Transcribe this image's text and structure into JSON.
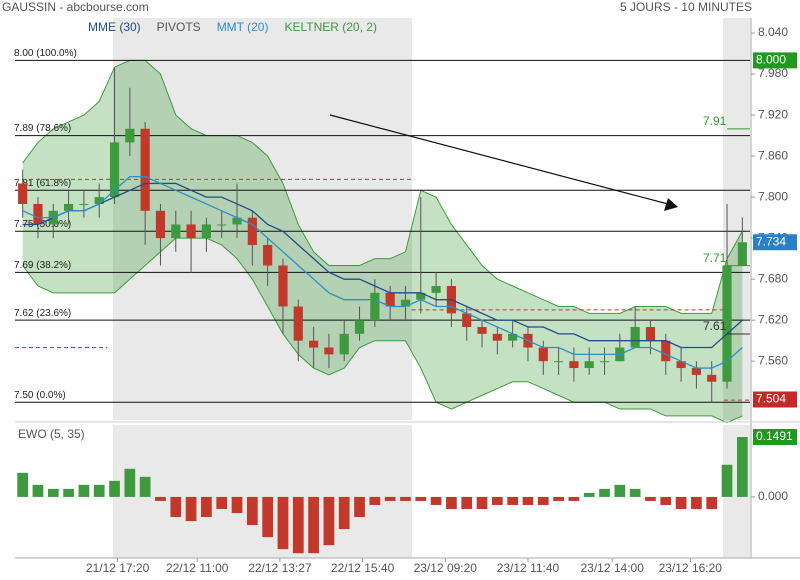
{
  "header": {
    "title": "GAUSSIN - abcbourse.com",
    "period": "5 JOURS - 10 MINUTES"
  },
  "chart_data": [
    {
      "type": "candlestick",
      "xlim": [
        -0.5,
        47.5
      ],
      "xticks": [
        {
          "value": 6.2,
          "label": "21/12 17:20"
        },
        {
          "value": 11.4,
          "label": "22/12 11:00"
        },
        {
          "value": 16.8,
          "label": "22/12 13:27"
        },
        {
          "value": 22.2,
          "label": "22/12 15:40"
        },
        {
          "value": 27.6,
          "label": "23/12 09:20"
        },
        {
          "value": 33,
          "label": "23/12 11:40"
        },
        {
          "value": 38.5,
          "label": "23/12 14:00"
        },
        {
          "value": 43.6,
          "label": "23/12 16:20"
        }
      ],
      "ylim": [
        7.474,
        8.062
      ],
      "yticks": [
        {
          "value": 8.04,
          "label": "8.040"
        },
        {
          "value": 7.98,
          "label": "7.980"
        },
        {
          "value": 7.92,
          "label": "7.920"
        },
        {
          "value": 7.86,
          "label": "7.860"
        },
        {
          "value": 7.8,
          "label": "7.800"
        },
        {
          "value": 7.74,
          "label": "7.740"
        },
        {
          "value": 7.68,
          "label": "7.680"
        },
        {
          "value": 7.62,
          "label": "7.620"
        },
        {
          "value": 7.56,
          "label": "7.560"
        }
      ],
      "up_color": "#3f9a3f",
      "down_color": "#c0392b",
      "open": [
        7.82,
        7.79,
        7.76,
        7.78,
        7.79,
        7.79,
        7.8,
        7.88,
        7.9,
        7.78,
        7.74,
        7.76,
        7.74,
        7.76,
        7.76,
        7.77,
        7.73,
        7.7,
        7.64,
        7.59,
        7.58,
        7.57,
        7.6,
        7.62,
        7.66,
        7.64,
        7.65,
        7.66,
        7.67,
        7.63,
        7.61,
        7.6,
        7.59,
        7.6,
        7.58,
        7.56,
        7.56,
        7.55,
        7.56,
        7.56,
        7.58,
        7.61,
        7.59,
        7.56,
        7.55,
        7.54,
        7.53,
        7.7
      ],
      "high": [
        7.84,
        7.8,
        7.79,
        7.81,
        7.81,
        7.82,
        7.99,
        7.96,
        7.91,
        7.79,
        7.78,
        7.78,
        7.77,
        7.78,
        7.82,
        7.78,
        7.74,
        7.71,
        7.65,
        7.61,
        7.6,
        7.62,
        7.64,
        7.68,
        7.67,
        7.67,
        7.8,
        7.69,
        7.68,
        7.64,
        7.62,
        7.61,
        7.62,
        7.61,
        7.59,
        7.58,
        7.58,
        7.58,
        7.58,
        7.6,
        7.64,
        7.62,
        7.6,
        7.58,
        7.56,
        7.56,
        7.79,
        7.77
      ],
      "low": [
        7.77,
        7.74,
        7.74,
        7.76,
        7.77,
        7.77,
        7.79,
        7.86,
        7.73,
        7.7,
        7.72,
        7.69,
        7.72,
        7.74,
        7.74,
        7.7,
        7.67,
        7.6,
        7.56,
        7.55,
        7.55,
        7.56,
        7.59,
        7.61,
        7.62,
        7.62,
        7.63,
        7.64,
        7.61,
        7.59,
        7.58,
        7.57,
        7.58,
        7.56,
        7.54,
        7.54,
        7.53,
        7.54,
        7.54,
        7.56,
        7.58,
        7.57,
        7.54,
        7.53,
        7.52,
        7.5,
        7.52,
        7.7
      ],
      "close": [
        7.79,
        7.76,
        7.78,
        7.79,
        7.79,
        7.8,
        7.88,
        7.9,
        7.78,
        7.74,
        7.76,
        7.74,
        7.76,
        7.76,
        7.77,
        7.73,
        7.7,
        7.64,
        7.59,
        7.58,
        7.57,
        7.6,
        7.62,
        7.66,
        7.64,
        7.65,
        7.66,
        7.67,
        7.63,
        7.61,
        7.6,
        7.59,
        7.6,
        7.58,
        7.56,
        7.56,
        7.55,
        7.56,
        7.56,
        7.58,
        7.61,
        7.59,
        7.56,
        7.55,
        7.54,
        7.53,
        7.7,
        7.734
      ],
      "mme": {
        "name": "MME (30)",
        "color": "#1f4e8c",
        "values": [
          7.76,
          7.76,
          7.77,
          7.78,
          7.78,
          7.79,
          7.8,
          7.81,
          7.82,
          7.82,
          7.82,
          7.81,
          7.8,
          7.8,
          7.79,
          7.78,
          7.76,
          7.75,
          7.73,
          7.71,
          7.69,
          7.68,
          7.68,
          7.67,
          7.66,
          7.66,
          7.66,
          7.65,
          7.65,
          7.64,
          7.63,
          7.62,
          7.62,
          7.61,
          7.61,
          7.6,
          7.6,
          7.59,
          7.59,
          7.59,
          7.59,
          7.59,
          7.59,
          7.58,
          7.58,
          7.58,
          7.6,
          7.62
        ]
      },
      "pivots": {
        "name": "PIVOTS",
        "color": "#555555",
        "levels": [
          {
            "value": 7.826,
            "start": -0.5,
            "end": 25.4
          },
          {
            "value": 7.58,
            "start": -0.5,
            "end": 5.5
          },
          {
            "value": 7.635,
            "start": 25.4,
            "end": 45.8
          },
          {
            "value": 7.503,
            "start": 45.8,
            "end": 47.5
          }
        ]
      },
      "mmt": {
        "name": "MMT (20)",
        "color": "#2f8ec9",
        "values": [
          7.78,
          7.77,
          7.77,
          7.78,
          7.78,
          7.79,
          7.81,
          7.83,
          7.83,
          7.82,
          7.81,
          7.8,
          7.79,
          7.78,
          7.77,
          7.76,
          7.74,
          7.72,
          7.7,
          7.68,
          7.66,
          7.65,
          7.65,
          7.65,
          7.64,
          7.64,
          7.65,
          7.64,
          7.64,
          7.63,
          7.62,
          7.61,
          7.6,
          7.59,
          7.58,
          7.58,
          7.57,
          7.57,
          7.57,
          7.57,
          7.58,
          7.58,
          7.57,
          7.56,
          7.55,
          7.55,
          7.56,
          7.58
        ]
      },
      "keltner": {
        "name": "KELTNER (20, 2)",
        "color": "#3d9a3d",
        "upper": [
          7.85,
          7.88,
          7.9,
          7.91,
          7.92,
          7.94,
          7.99,
          8.0,
          8.0,
          7.98,
          7.92,
          7.9,
          7.89,
          7.89,
          7.89,
          7.88,
          7.86,
          7.82,
          7.76,
          7.72,
          7.7,
          7.7,
          7.7,
          7.71,
          7.71,
          7.72,
          7.81,
          7.8,
          7.76,
          7.73,
          7.7,
          7.68,
          7.67,
          7.66,
          7.65,
          7.64,
          7.64,
          7.63,
          7.63,
          7.63,
          7.64,
          7.64,
          7.64,
          7.63,
          7.63,
          7.63,
          7.71,
          7.75
        ],
        "lower": [
          7.7,
          7.67,
          7.66,
          7.66,
          7.66,
          7.66,
          7.66,
          7.68,
          7.7,
          7.72,
          7.74,
          7.74,
          7.74,
          7.73,
          7.71,
          7.68,
          7.64,
          7.6,
          7.57,
          7.55,
          7.54,
          7.55,
          7.58,
          7.59,
          7.59,
          7.59,
          7.55,
          7.5,
          7.49,
          7.5,
          7.51,
          7.52,
          7.53,
          7.53,
          7.52,
          7.51,
          7.5,
          7.5,
          7.5,
          7.49,
          7.49,
          7.49,
          7.48,
          7.48,
          7.48,
          7.48,
          7.47,
          7.48
        ]
      },
      "fib_levels": [
        {
          "value": 8.0,
          "label": "8.00 (100.0%)"
        },
        {
          "value": 7.89,
          "label": "7.89 (78.6%)"
        },
        {
          "value": 7.81,
          "label": "7.81 (61.8%)"
        },
        {
          "value": 7.75,
          "label": "7.75 (50.0%)"
        },
        {
          "value": 7.69,
          "label": "7.69 (38.2%)"
        },
        {
          "value": 7.62,
          "label": "7.62 (23.6%)"
        },
        {
          "value": 7.5,
          "label": "7.50 (0.0%)"
        }
      ],
      "annotations": [
        {
          "value": 7.91,
          "label": "7.91",
          "color": "#2e9b2e"
        },
        {
          "value": 7.71,
          "label": "7.71",
          "color": "#2e9b2e"
        },
        {
          "value": 7.61,
          "label": "7.61",
          "color": "#333333"
        }
      ],
      "price_tags": [
        {
          "value": 8.0,
          "label": "8.000",
          "color": "#1f9a1f"
        },
        {
          "value": 7.734,
          "color": "#2b7fc4"
        },
        {
          "value": 7.504,
          "label": "7.504",
          "color": "#c62828"
        }
      ]
    },
    {
      "type": "bar",
      "title": "EWO (5, 35)",
      "xlim": [
        -0.5,
        47.5
      ],
      "ylim": [
        -0.152,
        0.179
      ],
      "yticks": [
        {
          "value": 0,
          "label": "0.000"
        }
      ],
      "pos_color": "#3f9a3f",
      "neg_color": "#c0392b",
      "values": [
        0.06,
        0.03,
        0.02,
        0.02,
        0.03,
        0.03,
        0.04,
        0.07,
        0.05,
        -0.01,
        -0.05,
        -0.06,
        -0.05,
        -0.03,
        -0.04,
        -0.07,
        -0.1,
        -0.13,
        -0.14,
        -0.14,
        -0.12,
        -0.08,
        -0.05,
        -0.02,
        -0.01,
        -0.01,
        -0.01,
        -0.02,
        -0.03,
        -0.03,
        -0.03,
        -0.02,
        -0.02,
        -0.02,
        -0.02,
        -0.01,
        -0.01,
        0.01,
        0.02,
        0.03,
        0.02,
        -0.01,
        -0.02,
        -0.03,
        -0.03,
        -0.03,
        0.08,
        0.1491
      ],
      "price_tags": [
        {
          "value": 0.1491,
          "color": "#1f9a1f"
        }
      ]
    }
  ]
}
